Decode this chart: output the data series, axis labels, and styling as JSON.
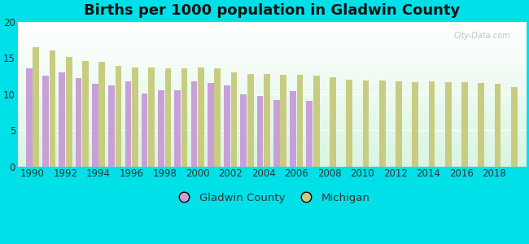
{
  "title": "Births per 1000 population in Gladwin County",
  "background_color": "#00e0e8",
  "years": [
    1990,
    1991,
    1992,
    1993,
    1994,
    1995,
    1996,
    1997,
    1998,
    1999,
    2000,
    2001,
    2002,
    2003,
    2004,
    2005,
    2006,
    2007,
    2008,
    2009,
    2010,
    2011,
    2012,
    2013,
    2014,
    2015,
    2016,
    2017,
    2018,
    2019
  ],
  "gladwin": [
    13.5,
    12.5,
    13.0,
    12.2,
    11.4,
    11.2,
    11.7,
    10.1,
    10.5,
    10.5,
    11.7,
    11.5,
    11.2,
    10.0,
    9.7,
    9.2,
    10.4,
    9.1,
    null,
    null,
    null,
    null,
    null,
    null,
    null,
    null,
    null,
    null,
    null,
    null
  ],
  "michigan": [
    16.5,
    16.0,
    15.1,
    14.6,
    14.4,
    13.9,
    13.7,
    13.6,
    13.5,
    13.5,
    13.6,
    13.5,
    13.0,
    12.8,
    12.8,
    12.6,
    12.6,
    12.5,
    12.3,
    12.0,
    11.9,
    11.8,
    11.7,
    11.6,
    11.7,
    11.6,
    11.6,
    11.5,
    11.4,
    11.0
  ],
  "gladwin_color": "#c8a0d8",
  "michigan_color": "#c8cc80",
  "ylim": [
    0,
    20
  ],
  "yticks": [
    0,
    5,
    10,
    15,
    20
  ],
  "xticks": [
    1990,
    1992,
    1994,
    1996,
    1998,
    2000,
    2002,
    2004,
    2006,
    2008,
    2010,
    2012,
    2014,
    2016,
    2018
  ],
  "bar_width": 0.38,
  "title_fontsize": 13,
  "tick_fontsize": 8.5,
  "legend_fontsize": 9.5
}
